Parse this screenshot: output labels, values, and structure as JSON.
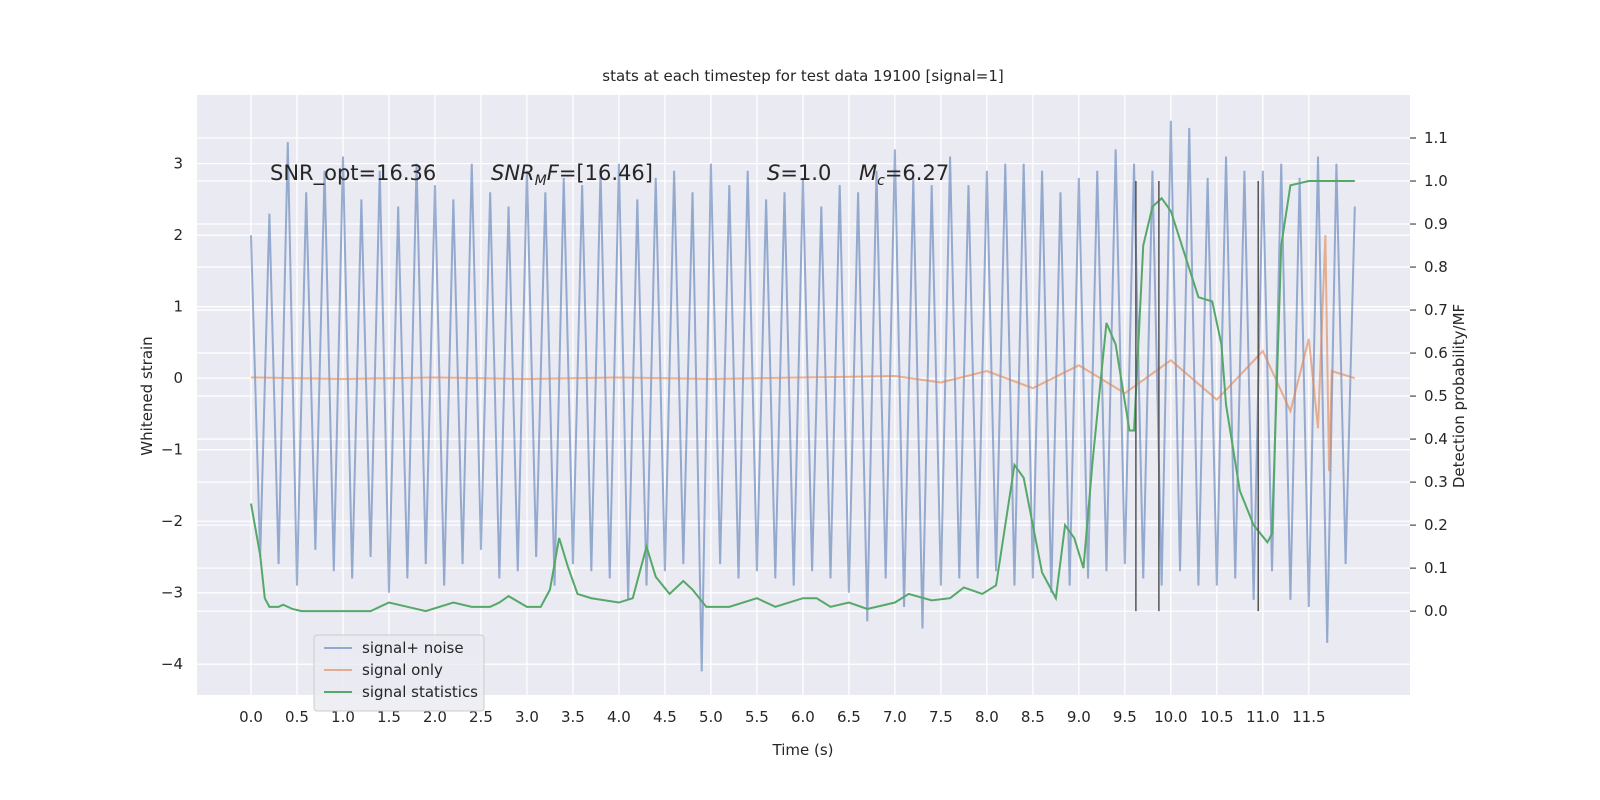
{
  "chart_data": {
    "type": "line",
    "title": "stats at each timestep for test data 19100 [signal=1]",
    "xlabel": "Time (s)",
    "ylabel": "Whitened strain",
    "y2label": "Detection probability/MF",
    "xlim": [
      -0.587,
      12.6
    ],
    "ylim": [
      -4.43,
      3.96
    ],
    "y2lim": [
      -0.195,
      1.2
    ],
    "grid": true,
    "legend": "lower left",
    "xticks": [
      {
        "value": 0,
        "label": "0.0"
      },
      0.5,
      {
        "value": 1,
        "label": "1.0"
      },
      1.5,
      {
        "value": 2,
        "label": "2.0"
      },
      2.5,
      {
        "value": 3,
        "label": "3.0"
      },
      3.5,
      {
        "value": 4,
        "label": "4.0"
      },
      4.5,
      {
        "value": 5,
        "label": "5.0"
      },
      5.5,
      {
        "value": 6,
        "label": "6.0"
      },
      6.5,
      {
        "value": 7,
        "label": "7.0"
      },
      7.5,
      {
        "value": 8,
        "label": "8.0"
      },
      8.5,
      {
        "value": 9,
        "label": "9.0"
      },
      9.5,
      {
        "value": 10,
        "label": "10.0"
      },
      10.5,
      {
        "value": 11,
        "label": "11.0"
      },
      11.5
    ],
    "yticks": [
      {
        "value": -4,
        "label": "−4"
      },
      {
        "value": -3,
        "label": "−3"
      },
      {
        "value": -2,
        "label": "−2"
      },
      {
        "value": -1,
        "label": "−1"
      },
      0,
      1,
      2,
      3
    ],
    "y2ticks": [
      {
        "value": 0,
        "label": "0.0"
      },
      0.1,
      0.2,
      0.3,
      0.4,
      0.5,
      0.6,
      0.7,
      0.8,
      0.9,
      {
        "value": 1,
        "label": "1.0"
      },
      1.1
    ],
    "annotations": [
      {
        "parts": [
          {
            "text": "SNR_opt=16.36"
          }
        ]
      },
      {
        "parts": [
          {
            "text": "SNR",
            "style": "italic"
          },
          {
            "text": "M",
            "style": "sub"
          },
          {
            "text": "F",
            "style": "italic"
          },
          {
            "text": "=[16.46]"
          }
        ]
      },
      {
        "parts": [
          {
            "text": "S",
            "style": "italic"
          },
          {
            "text": "=1.0"
          }
        ]
      },
      {
        "parts": [
          {
            "text": "M",
            "style": "italic"
          },
          {
            "text": "c",
            "style": "sub"
          },
          {
            "text": "=6.27"
          }
        ]
      }
    ],
    "vlines": {
      "x": [
        9.62,
        9.87,
        10.95
      ],
      "ymin": 0,
      "ymax": 1,
      "color": "#555555"
    },
    "series": [
      {
        "name": "signal+ noise",
        "color": "#4c72b0",
        "opacity": 0.55,
        "x": [
          0,
          0.1,
          0.2,
          0.3,
          0.4,
          0.5,
          0.6,
          0.7,
          0.8,
          0.9,
          1,
          1.1,
          1.2,
          1.3,
          1.4,
          1.5,
          1.6,
          1.7,
          1.8,
          1.9,
          2,
          2.1,
          2.2,
          2.3,
          2.4,
          2.5,
          2.6,
          2.7,
          2.8,
          2.9,
          3,
          3.1,
          3.2,
          3.3,
          3.4,
          3.5,
          3.6,
          3.7,
          3.8,
          3.9,
          4,
          4.1,
          4.2,
          4.3,
          4.4,
          4.5,
          4.6,
          4.7,
          4.8,
          4.9,
          5,
          5.1,
          5.2,
          5.3,
          5.4,
          5.5,
          5.6,
          5.7,
          5.8,
          5.9,
          6,
          6.1,
          6.2,
          6.3,
          6.4,
          6.5,
          6.6,
          6.7,
          6.8,
          6.9,
          7,
          7.1,
          7.2,
          7.3,
          7.4,
          7.5,
          7.6,
          7.7,
          7.8,
          7.9,
          8,
          8.1,
          8.2,
          8.3,
          8.4,
          8.5,
          8.6,
          8.7,
          8.8,
          8.9,
          9,
          9.1,
          9.2,
          9.3,
          9.4,
          9.5,
          9.6,
          9.7,
          9.8,
          9.9,
          10,
          10.1,
          10.2,
          10.3,
          10.4,
          10.5,
          10.6,
          10.7,
          10.8,
          10.9,
          11,
          11.1,
          11.2,
          11.3,
          11.4,
          11.5,
          11.6,
          11.7,
          11.8,
          11.9,
          12
        ],
        "values": [
          2.0,
          -2.5,
          2.3,
          -2.6,
          3.3,
          -2.9,
          2.6,
          -2.4,
          2.9,
          -2.7,
          3.1,
          -2.8,
          2.5,
          -2.5,
          2.9,
          -3.0,
          2.4,
          -2.8,
          3.0,
          -2.6,
          2.7,
          -2.9,
          2.5,
          -2.6,
          3.0,
          -2.4,
          2.6,
          -2.8,
          2.4,
          -2.7,
          2.9,
          -2.5,
          2.6,
          -2.9,
          2.8,
          -2.6,
          2.7,
          -2.7,
          2.9,
          -2.8,
          3.0,
          -3.1,
          2.5,
          -2.9,
          2.8,
          -2.7,
          2.9,
          -2.6,
          2.6,
          -4.1,
          3.0,
          -2.6,
          2.7,
          -2.8,
          2.9,
          -2.7,
          2.5,
          -2.8,
          2.6,
          -2.9,
          2.8,
          -2.7,
          2.4,
          -2.8,
          2.7,
          -3.0,
          2.6,
          -3.4,
          2.9,
          -2.8,
          3.2,
          -3.2,
          2.8,
          -3.5,
          2.7,
          -2.9,
          3.1,
          -2.8,
          2.7,
          -2.8,
          2.9,
          -2.7,
          3.0,
          -2.9,
          3.0,
          -2.8,
          2.9,
          -3.0,
          2.6,
          -2.9,
          2.8,
          -2.8,
          2.9,
          -2.7,
          3.2,
          -2.6,
          3.0,
          -2.8,
          2.9,
          -2.9,
          3.6,
          -2.7,
          3.5,
          -2.9,
          2.8,
          -2.9,
          3.1,
          -2.8,
          2.9,
          -3.1,
          2.9,
          -2.7,
          3.0,
          -3.1,
          2.8,
          -3.2,
          3.1,
          -3.7,
          3.0,
          -2.6,
          2.4
        ]
      },
      {
        "name": "signal only",
        "color": "#dd8452",
        "opacity": 0.6,
        "x": [
          0,
          1,
          2,
          3,
          4,
          5,
          6,
          7,
          7.5,
          8,
          8.5,
          9,
          9.5,
          10,
          10.5,
          11,
          11.3,
          11.5,
          11.6,
          11.65,
          11.68,
          11.72,
          11.75,
          12
        ],
        "values": [
          0.01,
          -0.01,
          0.01,
          -0.01,
          0.01,
          -0.01,
          0.01,
          0.03,
          -0.06,
          0.1,
          -0.14,
          0.18,
          -0.21,
          0.25,
          -0.3,
          0.38,
          -0.46,
          0.55,
          -0.7,
          1.0,
          2.0,
          -1.3,
          0.1,
          0.0
        ]
      },
      {
        "name": "signal statistics",
        "color": "#55a868",
        "opacity": 1,
        "axis": "y2",
        "x": [
          0,
          0.1,
          0.15,
          0.2,
          0.3,
          0.35,
          0.45,
          0.55,
          0.8,
          1,
          1.3,
          1.5,
          1.7,
          1.9,
          2.2,
          2.4,
          2.6,
          2.7,
          2.8,
          3,
          3.15,
          3.25,
          3.35,
          3.45,
          3.55,
          3.7,
          4,
          4.15,
          4.3,
          4.4,
          4.55,
          4.7,
          4.8,
          4.95,
          5.2,
          5.5,
          5.7,
          6,
          6.15,
          6.3,
          6.5,
          6.7,
          7,
          7.15,
          7.4,
          7.6,
          7.75,
          7.95,
          8.1,
          8.2,
          8.3,
          8.4,
          8.6,
          8.75,
          8.85,
          8.95,
          9.05,
          9.15,
          9.3,
          9.4,
          9.55,
          9.6,
          9.7,
          9.8,
          9.9,
          10,
          10.15,
          10.3,
          10.45,
          10.55,
          10.6,
          10.75,
          10.9,
          11.05,
          11.1,
          11.2,
          11.3,
          11.5,
          12
        ],
        "values": [
          0.25,
          0.13,
          0.03,
          0.01,
          0.01,
          0.015,
          0.005,
          0,
          0,
          0,
          0,
          0.02,
          0.01,
          0,
          0.02,
          0.01,
          0.01,
          0.02,
          0.035,
          0.01,
          0.01,
          0.05,
          0.17,
          0.1,
          0.04,
          0.03,
          0.02,
          0.03,
          0.15,
          0.08,
          0.04,
          0.07,
          0.05,
          0.01,
          0.01,
          0.03,
          0.01,
          0.03,
          0.03,
          0.01,
          0.02,
          0.005,
          0.02,
          0.04,
          0.025,
          0.03,
          0.055,
          0.04,
          0.06,
          0.2,
          0.34,
          0.31,
          0.09,
          0.03,
          0.2,
          0.17,
          0.1,
          0.35,
          0.67,
          0.62,
          0.42,
          0.42,
          0.85,
          0.94,
          0.96,
          0.93,
          0.83,
          0.73,
          0.72,
          0.62,
          0.48,
          0.28,
          0.2,
          0.16,
          0.18,
          0.85,
          0.99,
          1.0,
          1.0
        ]
      }
    ]
  }
}
